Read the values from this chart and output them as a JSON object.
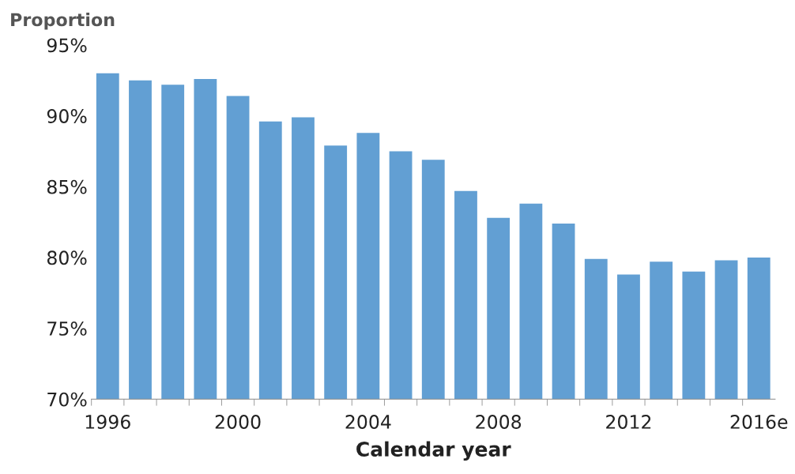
{
  "chart_data": {
    "type": "bar",
    "ylabel": "Proportion",
    "xlabel": "Calendar year",
    "categories": [
      "1996",
      null,
      null,
      null,
      "2000",
      null,
      null,
      null,
      "2004",
      null,
      null,
      null,
      "2008",
      null,
      null,
      null,
      "2012",
      null,
      null,
      null,
      "2016e"
    ],
    "values": [
      93.0,
      92.5,
      92.2,
      92.6,
      91.4,
      89.6,
      89.9,
      87.9,
      88.8,
      87.5,
      86.9,
      84.7,
      82.8,
      83.8,
      82.4,
      79.9,
      78.8,
      79.7,
      79.0,
      79.8,
      80.0
    ],
    "color": "#629fd3",
    "ylim": [
      70,
      95
    ],
    "yticks": [
      {
        "value": 70,
        "label": "70%"
      },
      {
        "value": 75,
        "label": "75%"
      },
      {
        "value": 80,
        "label": "80%"
      },
      {
        "value": 85,
        "label": "85%"
      },
      {
        "value": 90,
        "label": "90%"
      },
      {
        "value": 95,
        "label": "95%"
      }
    ],
    "grid": false,
    "legend": false
  }
}
